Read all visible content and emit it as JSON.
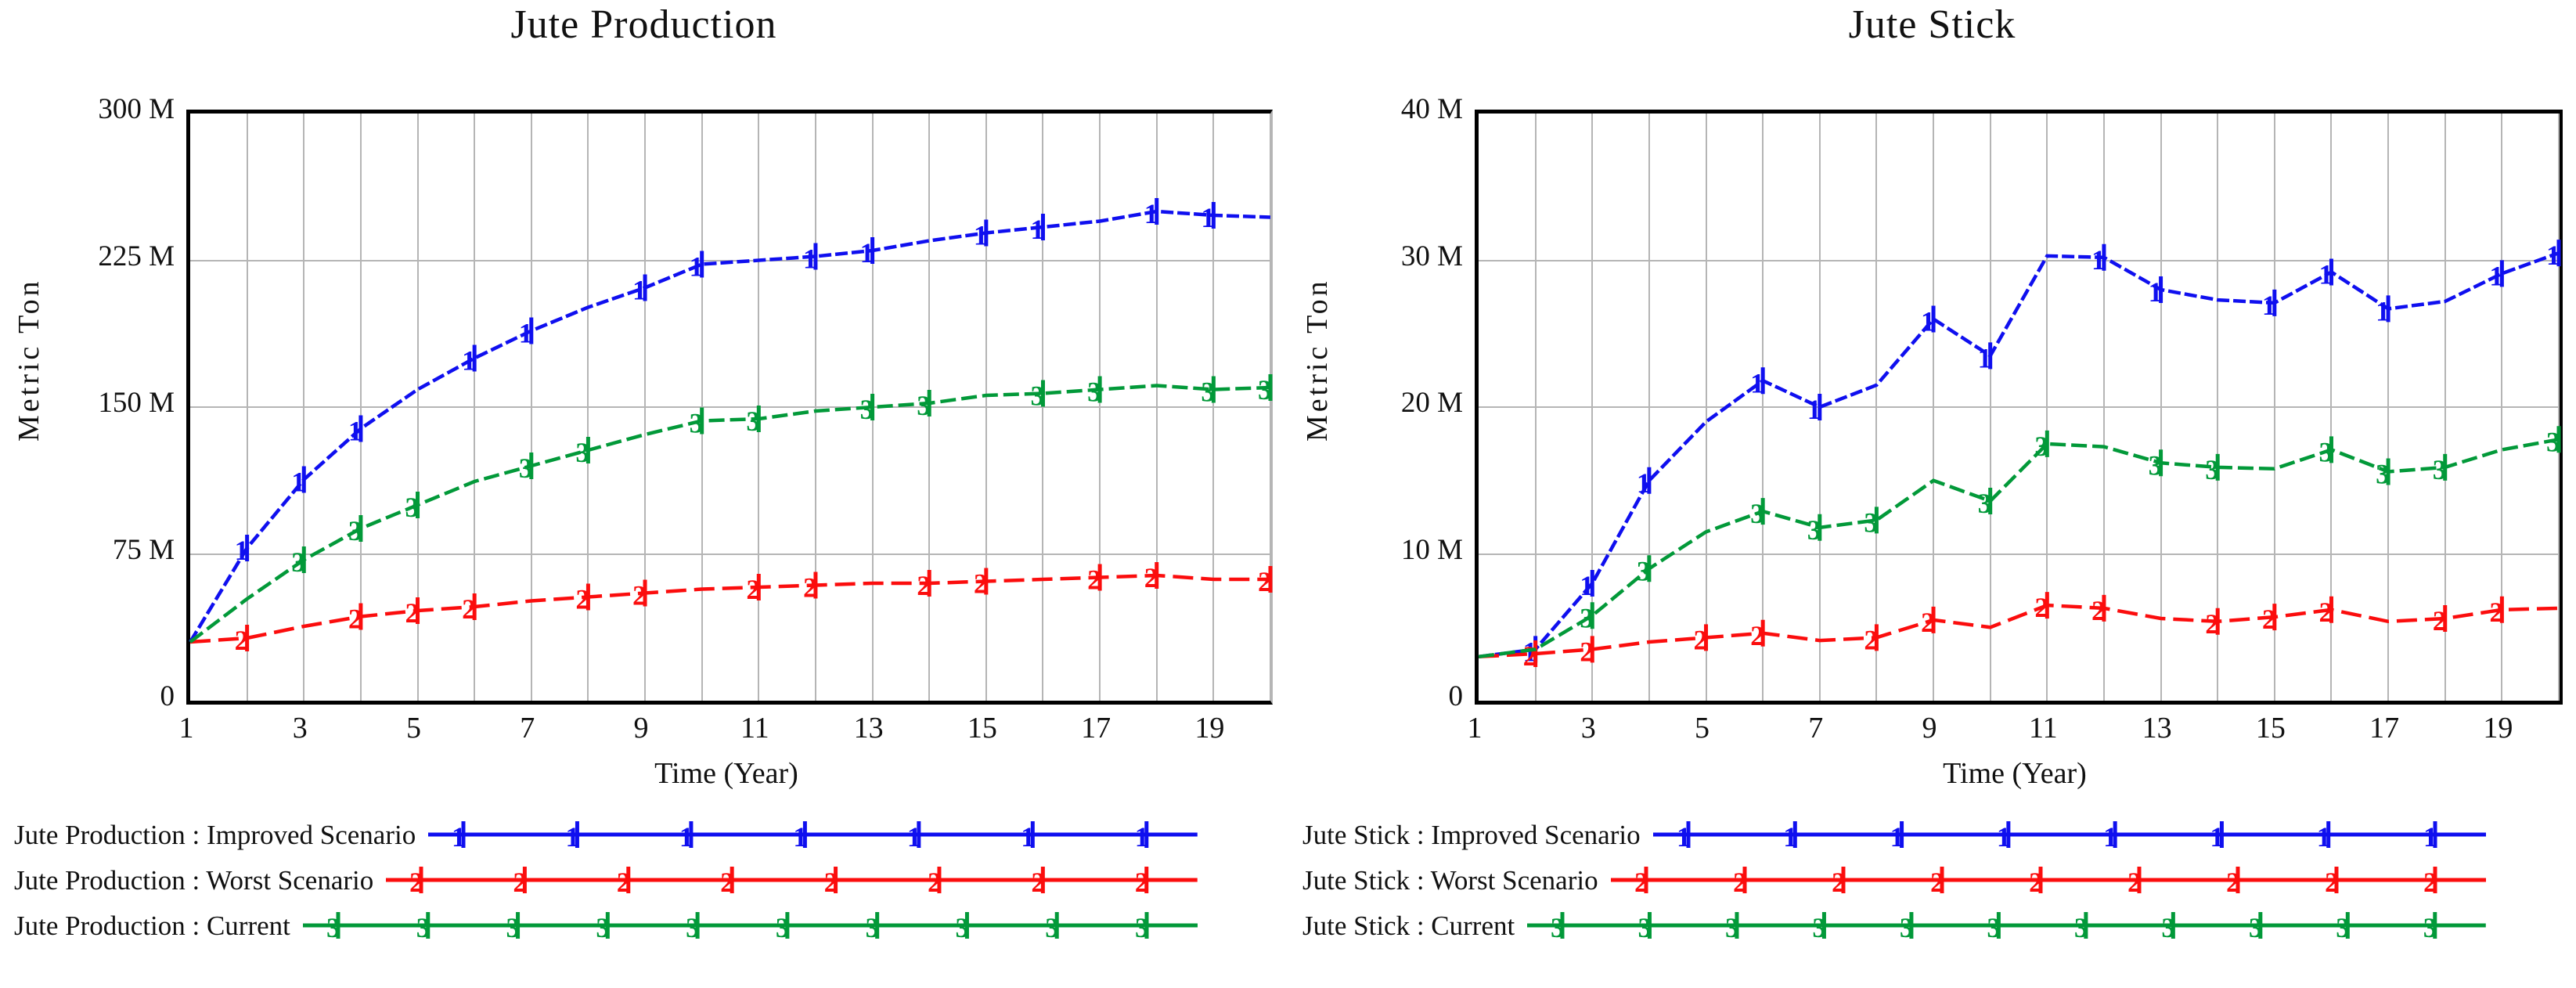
{
  "unit_note": "values in millions of Metric Ton (M)",
  "chart_data": [
    {
      "type": "line",
      "title": "Jute Production",
      "y_axis_label": "Metric Ton",
      "x_axis_label": "Time (Year)",
      "y_max": 300,
      "y_ticks_top_to_bottom": [
        "300 M",
        "225 M",
        "150 M",
        "75 M",
        "0"
      ],
      "x_ticks": [
        "1",
        "3",
        "5",
        "7",
        "9",
        "11",
        "13",
        "15",
        "17",
        "19"
      ],
      "x_range": [
        1,
        20
      ],
      "grid": "vertical line every year, horizontal line every 75 M",
      "legend_position": "bottom-left",
      "x": [
        1,
        2,
        3,
        4,
        5,
        6,
        7,
        8,
        9,
        10,
        11,
        12,
        13,
        14,
        15,
        16,
        17,
        18,
        19,
        20
      ],
      "series": [
        {
          "name": "Jute Production : Improved Scenario",
          "scenario": "Improved Scenario",
          "marker_digit": "1",
          "color": "#0f0fef",
          "dash": "16 5",
          "values": [
            30,
            78,
            113,
            139,
            159,
            175,
            189,
            201,
            211,
            223,
            225,
            227,
            230,
            235,
            239,
            242,
            245,
            250,
            248,
            247
          ],
          "marker_years": [
            2,
            3,
            4,
            6,
            7,
            9,
            10,
            12,
            13,
            15,
            16,
            18,
            19
          ],
          "legend_marker_count": 7
        },
        {
          "name": "Jute Production : Worst Scenario",
          "scenario": "Worst Scenario",
          "marker_digit": "2",
          "color": "#fb0d0d",
          "dash": "26 10",
          "values": [
            30,
            32,
            38,
            43,
            46,
            48,
            51,
            53,
            55,
            57,
            58,
            59,
            60,
            60,
            61,
            62,
            63,
            64,
            62,
            62
          ],
          "marker_years": [
            2,
            4,
            5,
            6,
            8,
            9,
            11,
            12,
            14,
            15,
            17,
            18,
            20
          ],
          "legend_marker_count": 8
        },
        {
          "name": "Jute Production : Current",
          "scenario": "Current",
          "marker_digit": "3",
          "color": "#029939",
          "dash": "20 7",
          "values": [
            30,
            52,
            72,
            88,
            100,
            112,
            120,
            128,
            136,
            143,
            144,
            148,
            150,
            152,
            156,
            157,
            159,
            161,
            159,
            160
          ],
          "marker_years": [
            3,
            4,
            5,
            7,
            8,
            10,
            11,
            13,
            14,
            16,
            17,
            19,
            20
          ],
          "legend_marker_count": 10
        }
      ]
    },
    {
      "type": "line",
      "title": "Jute Stick",
      "y_axis_label": "Metric Ton",
      "x_axis_label": "Time (Year)",
      "y_max": 40,
      "y_ticks_top_to_bottom": [
        "40 M",
        "30 M",
        "20 M",
        "10 M",
        "0"
      ],
      "x_ticks": [
        "1",
        "3",
        "5",
        "7",
        "9",
        "11",
        "13",
        "15",
        "17",
        "19"
      ],
      "x_range": [
        1,
        20
      ],
      "grid": "vertical line every year, horizontal line every 10 M",
      "legend_position": "bottom-left",
      "x": [
        1,
        2,
        3,
        4,
        5,
        6,
        7,
        8,
        9,
        10,
        11,
        12,
        13,
        14,
        15,
        16,
        17,
        18,
        19,
        20
      ],
      "series": [
        {
          "name": "Jute Stick : Improved Scenario",
          "scenario": "Improved Scenario",
          "marker_digit": "1",
          "color": "#0f0fef",
          "dash": "16 5",
          "values": [
            3,
            3.5,
            8,
            15,
            19,
            21.8,
            20,
            21.5,
            26,
            23.5,
            30.3,
            30.2,
            28,
            27.3,
            27.1,
            29.2,
            26.7,
            27.2,
            29.1,
            30.5
          ],
          "marker_years": [
            2,
            3,
            4,
            6,
            7,
            9,
            10,
            12,
            13,
            15,
            16,
            17,
            19,
            20
          ],
          "legend_marker_count": 8
        },
        {
          "name": "Jute Stick : Worst Scenario",
          "scenario": "Worst Scenario",
          "marker_digit": "2",
          "color": "#fb0d0d",
          "dash": "26 10",
          "values": [
            3,
            3.2,
            3.5,
            4,
            4.3,
            4.6,
            4.1,
            4.3,
            5.5,
            5,
            6.5,
            6.3,
            5.6,
            5.4,
            5.7,
            6.2,
            5.4,
            5.6,
            6.2,
            6.3
          ],
          "marker_years": [
            2,
            3,
            5,
            6,
            8,
            9,
            11,
            12,
            14,
            15,
            16,
            18,
            19
          ],
          "legend_marker_count": 9
        },
        {
          "name": "Jute Stick : Current",
          "scenario": "Current",
          "marker_digit": "3",
          "color": "#029939",
          "dash": "20 7",
          "values": [
            3,
            3.5,
            5.8,
            9,
            11.5,
            12.9,
            11.8,
            12.3,
            15,
            13.6,
            17.5,
            17.3,
            16.2,
            15.9,
            15.8,
            17.1,
            15.6,
            15.9,
            17.1,
            17.8
          ],
          "marker_years": [
            3,
            4,
            6,
            7,
            8,
            10,
            11,
            13,
            14,
            16,
            17,
            18,
            20
          ],
          "legend_marker_count": 11
        }
      ]
    }
  ]
}
